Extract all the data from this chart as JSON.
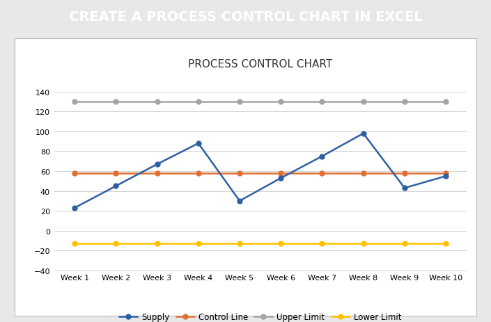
{
  "title": "PROCESS CONTROL CHART",
  "header_text": "CREATE A PROCESS CONTROL CHART IN EXCEL",
  "header_bg": "#4472C4",
  "header_text_color": "#FFFFFF",
  "categories": [
    "Week 1",
    "Week 2",
    "Week 3",
    "Week 4",
    "Week 5",
    "Week 6",
    "Week 7",
    "Week 8",
    "Week 9",
    "Week 10"
  ],
  "supply": [
    23,
    45,
    67,
    88,
    30,
    53,
    75,
    98,
    43,
    55
  ],
  "control_line": [
    58,
    58,
    58,
    58,
    58,
    58,
    58,
    58,
    58,
    58
  ],
  "upper_limit": [
    130,
    130,
    130,
    130,
    130,
    130,
    130,
    130,
    130,
    130
  ],
  "lower_limit": [
    -13,
    -13,
    -13,
    -13,
    -13,
    -13,
    -13,
    -13,
    -13,
    -13
  ],
  "supply_color": "#2E5FA3",
  "control_color": "#E07032",
  "upper_color": "#A5A5A5",
  "lower_color": "#FFC000",
  "ylim": [
    -40,
    155
  ],
  "yticks": [
    -40,
    -20,
    0,
    20,
    40,
    60,
    80,
    100,
    120,
    140
  ],
  "chart_bg": "#FFFFFF",
  "outer_bg": "#E8E8E8",
  "panel_bg": "#FFFFFF",
  "grid_color": "#D0D0D0",
  "title_fontsize": 11,
  "header_fontsize": 14,
  "legend_labels": [
    "Supply",
    "Control Line",
    "Upper Limit",
    "Lower Limit"
  ]
}
